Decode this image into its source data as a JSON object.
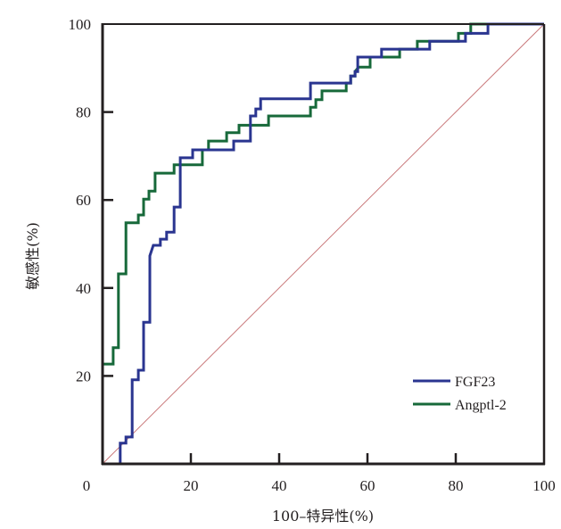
{
  "chart_data": {
    "type": "line",
    "subtype": "roc-step",
    "title": "",
    "xlabel": "100–特异性(%)",
    "ylabel": "敏感性(%)",
    "xlim": [
      0,
      100
    ],
    "ylim": [
      0,
      100
    ],
    "x_ticks": [
      0,
      20,
      40,
      60,
      80,
      100
    ],
    "y_ticks": [
      20,
      40,
      60,
      80,
      100
    ],
    "x_tick_labels": [
      "0",
      "20",
      "40",
      "60",
      "80",
      "100"
    ],
    "y_tick_labels": [
      "20",
      "40",
      "60",
      "80",
      "100"
    ],
    "grid": false,
    "legend_position": "bottom-right",
    "reference_line": {
      "name": "chance diagonal",
      "from": [
        0,
        0
      ],
      "to": [
        100,
        100
      ],
      "color": "#c9787a"
    },
    "series": [
      {
        "name": "FGF23",
        "color": "#2a3590",
        "points": [
          [
            0,
            0
          ],
          [
            4.0,
            0
          ],
          [
            4.0,
            4.7
          ],
          [
            5.3,
            4.7
          ],
          [
            5.3,
            6.1
          ],
          [
            6.7,
            6.1
          ],
          [
            6.7,
            19.1
          ],
          [
            8.1,
            19.1
          ],
          [
            8.1,
            21.3
          ],
          [
            9.3,
            21.3
          ],
          [
            9.3,
            32.2
          ],
          [
            10.7,
            32.2
          ],
          [
            10.7,
            47.3
          ],
          [
            11.5,
            49.7
          ],
          [
            13.1,
            49.7
          ],
          [
            13.1,
            51.1
          ],
          [
            14.5,
            51.1
          ],
          [
            14.5,
            52.7
          ],
          [
            16.2,
            52.7
          ],
          [
            16.2,
            58.4
          ],
          [
            17.6,
            58.4
          ],
          [
            17.6,
            69.6
          ],
          [
            20.4,
            69.6
          ],
          [
            20.4,
            71.4
          ],
          [
            29.7,
            71.4
          ],
          [
            29.7,
            73.4
          ],
          [
            33.5,
            73.4
          ],
          [
            33.5,
            79.1
          ],
          [
            34.7,
            79.1
          ],
          [
            34.7,
            80.7
          ],
          [
            35.8,
            80.7
          ],
          [
            35.8,
            83.0
          ],
          [
            47.1,
            83.0
          ],
          [
            47.1,
            86.6
          ],
          [
            56.2,
            86.6
          ],
          [
            56.2,
            88.2
          ],
          [
            57.2,
            88.2
          ],
          [
            57.2,
            89.2
          ],
          [
            57.8,
            89.2
          ],
          [
            57.8,
            92.5
          ],
          [
            63.2,
            92.5
          ],
          [
            63.2,
            94.3
          ],
          [
            74.1,
            94.3
          ],
          [
            74.1,
            96.1
          ],
          [
            82.2,
            96.1
          ],
          [
            82.2,
            97.9
          ],
          [
            87.3,
            97.9
          ],
          [
            87.3,
            100
          ],
          [
            100,
            100
          ]
        ]
      },
      {
        "name": "Angptl-2",
        "color": "#17693a",
        "points": [
          [
            0,
            0
          ],
          [
            0,
            22.7
          ],
          [
            2.4,
            22.7
          ],
          [
            2.4,
            26.4
          ],
          [
            3.6,
            26.4
          ],
          [
            3.6,
            43.2
          ],
          [
            5.3,
            43.2
          ],
          [
            5.3,
            54.8
          ],
          [
            8.1,
            54.8
          ],
          [
            8.1,
            56.6
          ],
          [
            9.3,
            56.6
          ],
          [
            9.3,
            60.2
          ],
          [
            10.5,
            60.2
          ],
          [
            10.5,
            62.0
          ],
          [
            11.9,
            62.0
          ],
          [
            11.9,
            66.1
          ],
          [
            16.2,
            66.1
          ],
          [
            16.2,
            68.0
          ],
          [
            22.6,
            68.0
          ],
          [
            22.6,
            71.4
          ],
          [
            24.0,
            71.4
          ],
          [
            24.0,
            73.4
          ],
          [
            28.1,
            73.4
          ],
          [
            28.1,
            75.3
          ],
          [
            30.9,
            75.3
          ],
          [
            30.9,
            77.0
          ],
          [
            37.6,
            77.0
          ],
          [
            37.6,
            79.1
          ],
          [
            47.1,
            79.1
          ],
          [
            47.1,
            81.1
          ],
          [
            48.3,
            81.1
          ],
          [
            48.3,
            82.8
          ],
          [
            49.7,
            82.8
          ],
          [
            49.7,
            84.8
          ],
          [
            55.2,
            84.8
          ],
          [
            55.2,
            86.6
          ],
          [
            56.2,
            86.6
          ],
          [
            56.2,
            88.2
          ],
          [
            57.2,
            88.2
          ],
          [
            57.2,
            89.2
          ],
          [
            58.0,
            90.2
          ],
          [
            60.6,
            90.2
          ],
          [
            60.6,
            92.5
          ],
          [
            67.3,
            92.5
          ],
          [
            67.3,
            94.3
          ],
          [
            71.3,
            94.3
          ],
          [
            71.3,
            96.1
          ],
          [
            80.6,
            96.1
          ],
          [
            80.6,
            97.9
          ],
          [
            83.4,
            97.9
          ],
          [
            83.4,
            100
          ],
          [
            100,
            100
          ]
        ]
      }
    ]
  }
}
